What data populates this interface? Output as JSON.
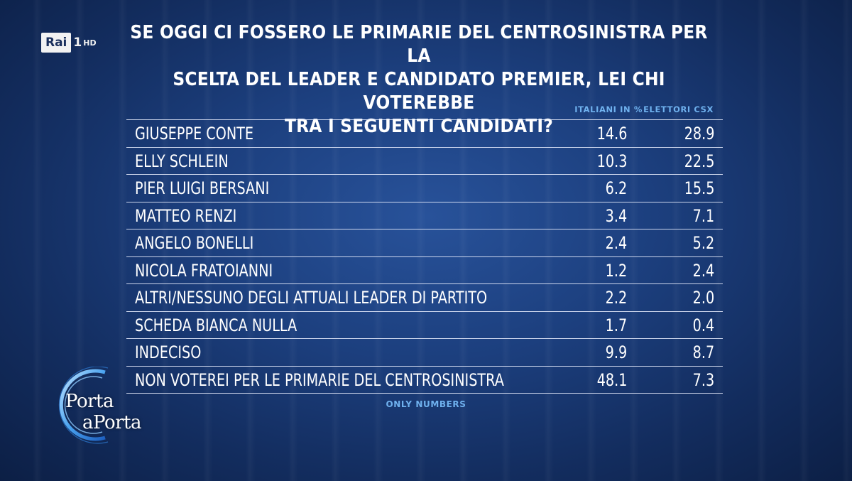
{
  "channel": {
    "brand": "Rai",
    "number": "1",
    "quality": "HD"
  },
  "title": "SE OGGI CI FOSSERO LE PRIMARIE DEL CENTROSINISTRA PER LA\nSCELTA DEL LEADER E CANDIDATO PREMIER, LEI CHI VOTEREBBE\nTRA I SEGUENTI CANDIDATI?",
  "columns": {
    "col1": "ITALIANI IN %",
    "col2": "ELETTORI CSX"
  },
  "footnote": "ONLY NUMBERS",
  "show_logo": {
    "word1": "Porta",
    "word2": "aPorta"
  },
  "colors": {
    "background": "#1c3f7e",
    "header_text": "#6fb1ee",
    "text": "#ffffff"
  },
  "chart_data": {
    "type": "table",
    "title": "SE OGGI CI FOSSERO LE PRIMARIE DEL CENTROSINISTRA PER LA SCELTA DEL LEADER E CANDIDATO PREMIER, LEI CHI VOTEREBBE TRA I SEGUENTI CANDIDATI?",
    "columns": [
      "ITALIANI IN %",
      "ELETTORI CSX"
    ],
    "rows": [
      {
        "label": "GIUSEPPE CONTE",
        "italiani": "14.6",
        "elettori_csx": "28.9"
      },
      {
        "label": "ELLY SCHLEIN",
        "italiani": "10.3",
        "elettori_csx": "22.5"
      },
      {
        "label": "PIER LUIGI BERSANI",
        "italiani": "6.2",
        "elettori_csx": "15.5"
      },
      {
        "label": "MATTEO RENZI",
        "italiani": "3.4",
        "elettori_csx": "7.1"
      },
      {
        "label": "ANGELO BONELLI",
        "italiani": "2.4",
        "elettori_csx": "5.2"
      },
      {
        "label": "NICOLA FRATOIANNI",
        "italiani": "1.2",
        "elettori_csx": "2.4"
      },
      {
        "label": "ALTRI/NESSUNO DEGLI ATTUALI LEADER DI PARTITO",
        "italiani": "2.2",
        "elettori_csx": "2.0"
      },
      {
        "label": "SCHEDA BIANCA NULLA",
        "italiani": "1.7",
        "elettori_csx": "0.4"
      },
      {
        "label": "INDECISO",
        "italiani": "9.9",
        "elettori_csx": "8.7"
      },
      {
        "label": "NON VOTEREI PER LE PRIMARIE DEL CENTROSINISTRA",
        "italiani": "48.1",
        "elettori_csx": "7.3"
      }
    ]
  }
}
